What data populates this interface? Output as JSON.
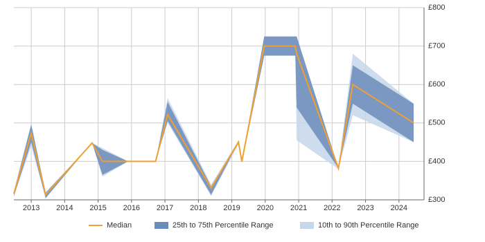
{
  "chart_data": {
    "type": "range-line",
    "x": [
      2012.48,
      2013,
      2013.43,
      2014.82,
      2015.13,
      2015.9,
      2016.72,
      2017.08,
      2018.38,
      2019.2,
      2019.3,
      2019.97,
      2020.9,
      2020.94,
      2022.19,
      2022.62,
      2024.44
    ],
    "series": [
      {
        "name": "10th to 90th Percentile Range",
        "kind": "band",
        "color": "#c6d7ea",
        "low": [
          308,
          440,
          303,
          448,
          360,
          400,
          400,
          500,
          310,
          445,
          395,
          675,
          675,
          455,
          380,
          520,
          450
        ],
        "high": [
          322,
          500,
          320,
          448,
          435,
          400,
          400,
          565,
          340,
          455,
          405,
          725,
          725,
          725,
          385,
          680,
          550
        ]
      },
      {
        "name": "25th to 75th Percentile Range",
        "kind": "band",
        "color": "#6b8cba",
        "low": [
          310,
          450,
          305,
          448,
          365,
          400,
          400,
          505,
          313,
          450,
          400,
          675,
          675,
          540,
          382,
          550,
          450
        ],
        "high": [
          320,
          495,
          318,
          448,
          430,
          400,
          400,
          555,
          335,
          450,
          400,
          725,
          725,
          725,
          382,
          650,
          550
        ]
      },
      {
        "name": "Median",
        "kind": "line",
        "color": "#f0a030",
        "values": [
          316,
          473,
          313,
          448,
          400,
          400,
          400,
          522,
          331,
          450,
          400,
          700,
          700,
          680,
          382,
          600,
          500
        ]
      }
    ],
    "legend_order": [
      2,
      1,
      0
    ],
    "xlim": [
      2012.48,
      2024.75
    ],
    "xticks": [
      2013,
      2014,
      2015,
      2016,
      2017,
      2018,
      2019,
      2020,
      2021,
      2022,
      2023,
      2024
    ],
    "ylim": [
      300,
      800
    ],
    "yticks": [
      {
        "value": 300,
        "label": "£300"
      },
      {
        "value": 400,
        "label": "£400"
      },
      {
        "value": 500,
        "label": "£500"
      },
      {
        "value": 600,
        "label": "£600"
      },
      {
        "value": 700,
        "label": "£700"
      },
      {
        "value": 800,
        "label": "£800"
      }
    ],
    "grid": true
  }
}
